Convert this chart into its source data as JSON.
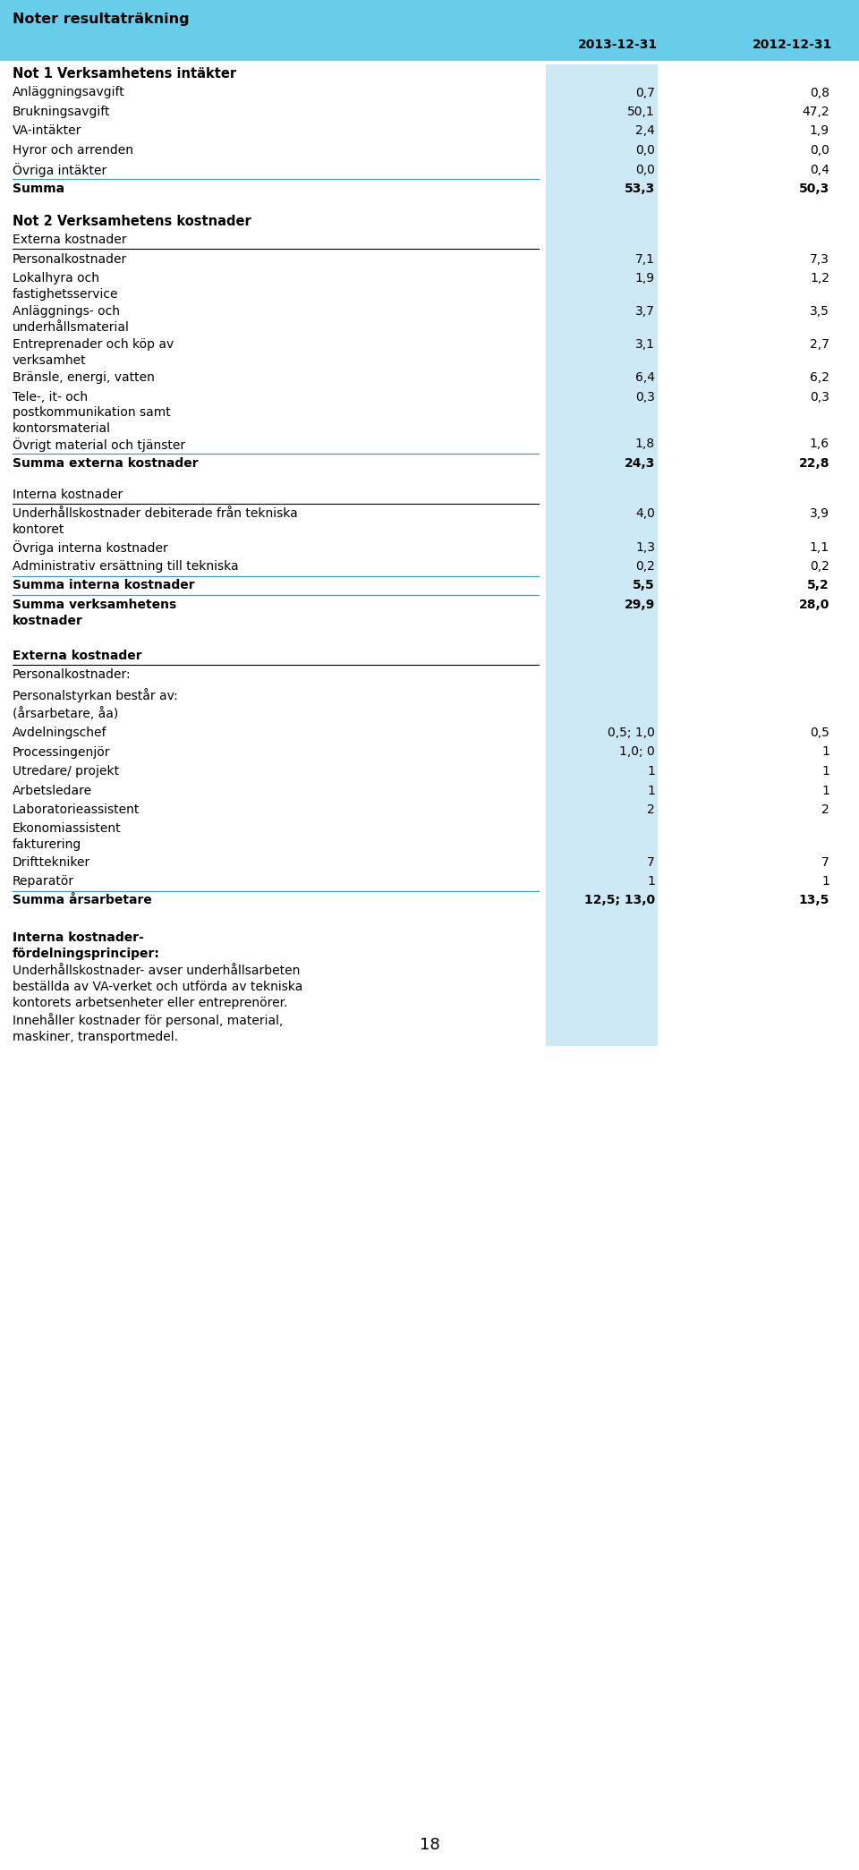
{
  "title": "Noter resultaträkning",
  "col2_header": "2013-12-31",
  "col3_header": "2012-12-31",
  "header_bg": "#67cde8",
  "col2_bg": "#cce9f5",
  "page_bg": "#ffffff",
  "title_fontsize": 11.5,
  "header_fontsize": 10,
  "body_fontsize": 10,
  "rows": [
    {
      "text": "Not 1 Verksamhetens intäkter",
      "val1": "",
      "val2": "",
      "style": "section_header",
      "line_below": false,
      "spacer_after": 0
    },
    {
      "text": "Anläggningsavgift",
      "val1": "0,7",
      "val2": "0,8",
      "style": "normal",
      "line_below": false,
      "spacer_after": 0
    },
    {
      "text": "Brukningsavgift",
      "val1": "50,1",
      "val2": "47,2",
      "style": "normal",
      "line_below": false,
      "spacer_after": 0
    },
    {
      "text": "VA-intäkter",
      "val1": "2,4",
      "val2": "1,9",
      "style": "normal",
      "line_below": false,
      "spacer_after": 0
    },
    {
      "text": "Hyror och arrenden",
      "val1": "0,0",
      "val2": "0,0",
      "style": "normal",
      "line_below": false,
      "spacer_after": 0
    },
    {
      "text": "Övriga intäkter",
      "val1": "0,0",
      "val2": "0,4",
      "style": "normal",
      "line_below": true,
      "spacer_after": 0
    },
    {
      "text": "Summa",
      "val1": "53,3",
      "val2": "50,3",
      "style": "bold",
      "line_below": false,
      "spacer_after": 14
    },
    {
      "text": "Not 2 Verksamhetens kostnader",
      "val1": "",
      "val2": "",
      "style": "section_header",
      "line_below": false,
      "spacer_after": 0
    },
    {
      "text": "Externa kostnader",
      "val1": "",
      "val2": "",
      "style": "underline_label",
      "line_below": false,
      "spacer_after": 0
    },
    {
      "text": "Personalkostnader",
      "val1": "7,1",
      "val2": "7,3",
      "style": "normal",
      "line_below": false,
      "spacer_after": 0
    },
    {
      "text": "Lokalhyra och\nfastighetsservice",
      "val1": "1,9",
      "val2": "1,2",
      "style": "normal",
      "line_below": false,
      "spacer_after": 0
    },
    {
      "text": "Anläggnings- och\nunderhållsmaterial",
      "val1": "3,7",
      "val2": "3,5",
      "style": "normal",
      "line_below": false,
      "spacer_after": 0
    },
    {
      "text": "Entreprenader och köp av\nverksamhet",
      "val1": "3,1",
      "val2": "2,7",
      "style": "normal",
      "line_below": false,
      "spacer_after": 0
    },
    {
      "text": "Bränsle, energi, vatten",
      "val1": "6,4",
      "val2": "6,2",
      "style": "normal",
      "line_below": false,
      "spacer_after": 0
    },
    {
      "text": "Tele-, it- och\npostkommunikation samt\nkontorsmaterial",
      "val1": "0,3",
      "val2": "0,3",
      "style": "normal",
      "line_below": false,
      "spacer_after": 0
    },
    {
      "text": "Övrigt material och tjänster",
      "val1": "1,8",
      "val2": "1,6",
      "style": "normal",
      "line_below": true,
      "spacer_after": 0
    },
    {
      "text": "Summa externa kostnader",
      "val1": "24,3",
      "val2": "22,8",
      "style": "bold",
      "line_below": false,
      "spacer_after": 14
    },
    {
      "text": "Interna kostnader",
      "val1": "",
      "val2": "",
      "style": "underline_label",
      "line_below": false,
      "spacer_after": 0
    },
    {
      "text": "Underhållskostnader debiterade från tekniska\nkontoret",
      "val1": "4,0",
      "val2": "3,9",
      "style": "normal",
      "line_below": false,
      "spacer_after": 0
    },
    {
      "text": "Övriga interna kostnader",
      "val1": "1,3",
      "val2": "1,1",
      "style": "normal",
      "line_below": false,
      "spacer_after": 0
    },
    {
      "text": "Administrativ ersättning till tekniska",
      "val1": "0,2",
      "val2": "0,2",
      "style": "normal",
      "line_below": true,
      "spacer_after": 0
    },
    {
      "text": "Summa interna kostnader",
      "val1": "5,5",
      "val2": "5,2",
      "style": "bold",
      "line_below": true,
      "spacer_after": 0
    },
    {
      "text": "Summa verksamhetens\nkostnader",
      "val1": "29,9",
      "val2": "28,0",
      "style": "bold",
      "line_below": false,
      "spacer_after": 20
    },
    {
      "text": "Externa kostnader",
      "val1": "",
      "val2": "",
      "style": "bold_underline",
      "line_below": false,
      "spacer_after": 0
    },
    {
      "text": "Personalkostnader:",
      "val1": "",
      "val2": "",
      "style": "normal",
      "line_below": false,
      "spacer_after": 0
    },
    {
      "text": "Personalstyrkan består av:",
      "val1": "",
      "val2": "",
      "style": "normal",
      "line_below": false,
      "spacer_after": 0
    },
    {
      "text": "(årsarbetare, åa)",
      "val1": "",
      "val2": "",
      "style": "normal",
      "line_below": false,
      "spacer_after": 0
    },
    {
      "text": "Avdelningschef",
      "val1": "0,5; 1,0",
      "val2": "0,5",
      "style": "normal",
      "line_below": false,
      "spacer_after": 0
    },
    {
      "text": "Processingenjör",
      "val1": "1,0; 0",
      "val2": "1",
      "style": "normal",
      "line_below": false,
      "spacer_after": 0
    },
    {
      "text": "Utredare/ projekt",
      "val1": "1",
      "val2": "1",
      "style": "normal",
      "line_below": false,
      "spacer_after": 0
    },
    {
      "text": "Arbetsledare",
      "val1": "1",
      "val2": "1",
      "style": "normal",
      "line_below": false,
      "spacer_after": 0
    },
    {
      "text": "Laboratorieassistent",
      "val1": "2",
      "val2": "2",
      "style": "normal",
      "line_below": false,
      "spacer_after": 0
    },
    {
      "text": "Ekonomiassistent\nfakturering",
      "val1": "",
      "val2": "",
      "style": "normal",
      "line_below": false,
      "spacer_after": 0
    },
    {
      "text": "Drifttekniker",
      "val1": "7",
      "val2": "7",
      "style": "normal",
      "line_below": false,
      "spacer_after": 0
    },
    {
      "text": "Reparatör",
      "val1": "1",
      "val2": "1",
      "style": "normal",
      "line_below": true,
      "spacer_after": 0
    },
    {
      "text": "Summa årsarbetare",
      "val1": "12,5; 13,0",
      "val2": "13,5",
      "style": "bold",
      "line_below": false,
      "spacer_after": 20
    },
    {
      "text": "Interna kostnader-\nfördelningsprinciper:",
      "val1": "",
      "val2": "",
      "style": "bold",
      "line_below": false,
      "spacer_after": 0
    },
    {
      "text": "Underhållskostnader- avser underhållsarbeten\nbeställda av VA-verket och utförda av tekniska\nkontorets arbetsenheter eller entreprenörer.\nInnehåller kostnader för personal, material,\nmaskiner, transportmedel.",
      "val1": "",
      "val2": "",
      "style": "normal",
      "line_below": false,
      "spacer_after": 0
    }
  ],
  "page_number": "18"
}
